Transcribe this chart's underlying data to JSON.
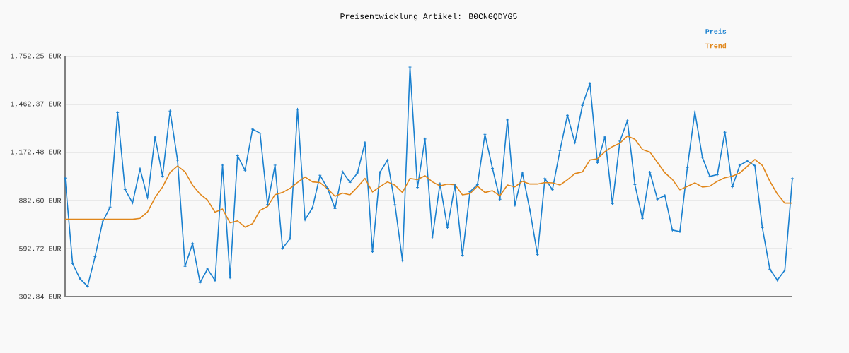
{
  "chart_data": {
    "type": "line",
    "title": "Preisentwicklung Artikel: B0CNGQDYG5",
    "categories": [
      null,
      null,
      null,
      null,
      null,
      null,
      null,
      null,
      null,
      null,
      null,
      null,
      null,
      null,
      null,
      null,
      null,
      null,
      null,
      null,
      null,
      null,
      null,
      null,
      null,
      null,
      null,
      null,
      null,
      null,
      null,
      null,
      null,
      null,
      null,
      null,
      null,
      null,
      null,
      null,
      null,
      null,
      null,
      null,
      null,
      null,
      null,
      null,
      null,
      null,
      null,
      null,
      null,
      null,
      null,
      null,
      null,
      null,
      null,
      null,
      null,
      null,
      null,
      null,
      null,
      null,
      null,
      null,
      null,
      null,
      null,
      null,
      null,
      null,
      null,
      null,
      null,
      null,
      null,
      null,
      null,
      null,
      null,
      null,
      null,
      null,
      null,
      null,
      null,
      null,
      null,
      null,
      null,
      null,
      null,
      null,
      null,
      null
    ],
    "series": [
      {
        "name": "Preis",
        "color": "#1a80cf",
        "marker": "cross",
        "values": [
          1018,
          502,
          409,
          365,
          544,
          753,
          843,
          1414,
          949,
          868,
          1074,
          898,
          1266,
          1029,
          1423,
          1126,
          485,
          623,
          387,
          469,
          399,
          1096,
          417,
          1153,
          1065,
          1313,
          1289,
          858,
          1096,
          594,
          652,
          1433,
          766,
          839,
          1035,
          957,
          834,
          1056,
          992,
          1049,
          1232,
          573,
          1053,
          1126,
          857,
          519,
          1688,
          961,
          1254,
          662,
          984,
          719,
          976,
          552,
          935,
          978,
          1282,
          1077,
          890,
          1369,
          854,
          1049,
          824,
          556,
          1015,
          948,
          1184,
          1397,
          1231,
          1457,
          1589,
          1111,
          1266,
          863,
          1241,
          1364,
          979,
          775,
          1053,
          891,
          912,
          704,
          695,
          1082,
          1418,
          1143,
          1028,
          1039,
          1295,
          966,
          1096,
          1121,
          1093,
          719,
          468,
          402,
          462,
          1015
        ]
      },
      {
        "name": "Trend",
        "color": "#e0861a",
        "marker": "none",
        "values": [
          769,
          769,
          769,
          769,
          769,
          769,
          769,
          769,
          769,
          769,
          775,
          814,
          900,
          964,
          1053,
          1091,
          1056,
          975,
          921,
          885,
          812,
          831,
          748,
          760,
          722,
          743,
          823,
          846,
          918,
          931,
          956,
          992,
          1025,
          995,
          991,
          954,
          908,
          927,
          917,
          964,
          1016,
          934,
          966,
          995,
          975,
          931,
          1016,
          1009,
          1032,
          995,
          971,
          982,
          978,
          917,
          924,
          969,
          931,
          942,
          911,
          976,
          965,
          999,
          982,
          982,
          991,
          989,
          976,
          1008,
          1045,
          1055,
          1127,
          1134,
          1177,
          1208,
          1229,
          1272,
          1252,
          1191,
          1175,
          1113,
          1050,
          1010,
          947,
          968,
          989,
          964,
          969,
          999,
          1020,
          1030,
          1049,
          1089,
          1130,
          1094,
          999,
          922,
          867,
          867
        ]
      }
    ],
    "ylim": [
      302.84,
      1752.25
    ],
    "yticks": [
      {
        "value": 302.84,
        "label": "302.84 EUR"
      },
      {
        "value": 592.72,
        "label": "592.72 EUR"
      },
      {
        "value": 882.6,
        "label": "882.60 EUR"
      },
      {
        "value": 1172.48,
        "label": "1,172.48 EUR"
      },
      {
        "value": 1462.37,
        "label": "1,462.37 EUR"
      },
      {
        "value": 1752.25,
        "label": "1,752.25 EUR"
      }
    ],
    "grid": "y",
    "legend": "top right",
    "line_style": "solid"
  }
}
